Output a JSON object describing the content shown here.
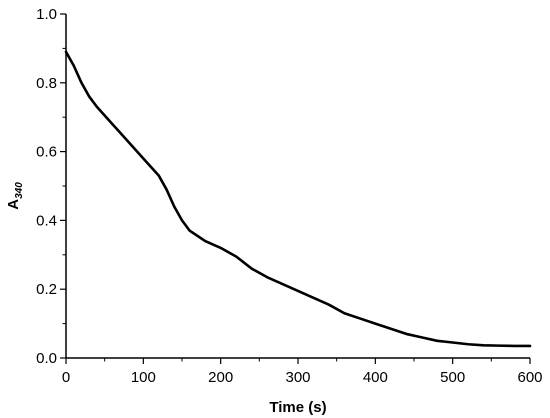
{
  "chart_data": {
    "type": "line",
    "title": "",
    "xlabel": "Time (s)",
    "ylabel_main": "A",
    "ylabel_sub": "340",
    "xlim": [
      0,
      600
    ],
    "ylim": [
      0,
      1.0
    ],
    "x_ticks": [
      "0",
      "100",
      "200",
      "300",
      "400",
      "500",
      "600"
    ],
    "y_ticks": [
      "0.0",
      "0.2",
      "0.4",
      "0.6",
      "0.8",
      "1.0"
    ],
    "grid": false,
    "legend": "none",
    "series": [
      {
        "color": "#000000",
        "x": [
          0,
          10,
          20,
          30,
          40,
          50,
          60,
          80,
          100,
          120,
          130,
          140,
          150,
          160,
          170,
          180,
          200,
          220,
          240,
          260,
          280,
          300,
          320,
          340,
          360,
          380,
          400,
          420,
          440,
          460,
          480,
          500,
          520,
          540,
          560,
          580,
          600
        ],
        "y": [
          0.89,
          0.85,
          0.8,
          0.76,
          0.73,
          0.705,
          0.68,
          0.63,
          0.58,
          0.53,
          0.49,
          0.44,
          0.4,
          0.37,
          0.355,
          0.34,
          0.32,
          0.295,
          0.26,
          0.235,
          0.215,
          0.195,
          0.175,
          0.155,
          0.13,
          0.115,
          0.1,
          0.085,
          0.07,
          0.06,
          0.05,
          0.045,
          0.04,
          0.037,
          0.036,
          0.035,
          0.035
        ]
      }
    ]
  }
}
